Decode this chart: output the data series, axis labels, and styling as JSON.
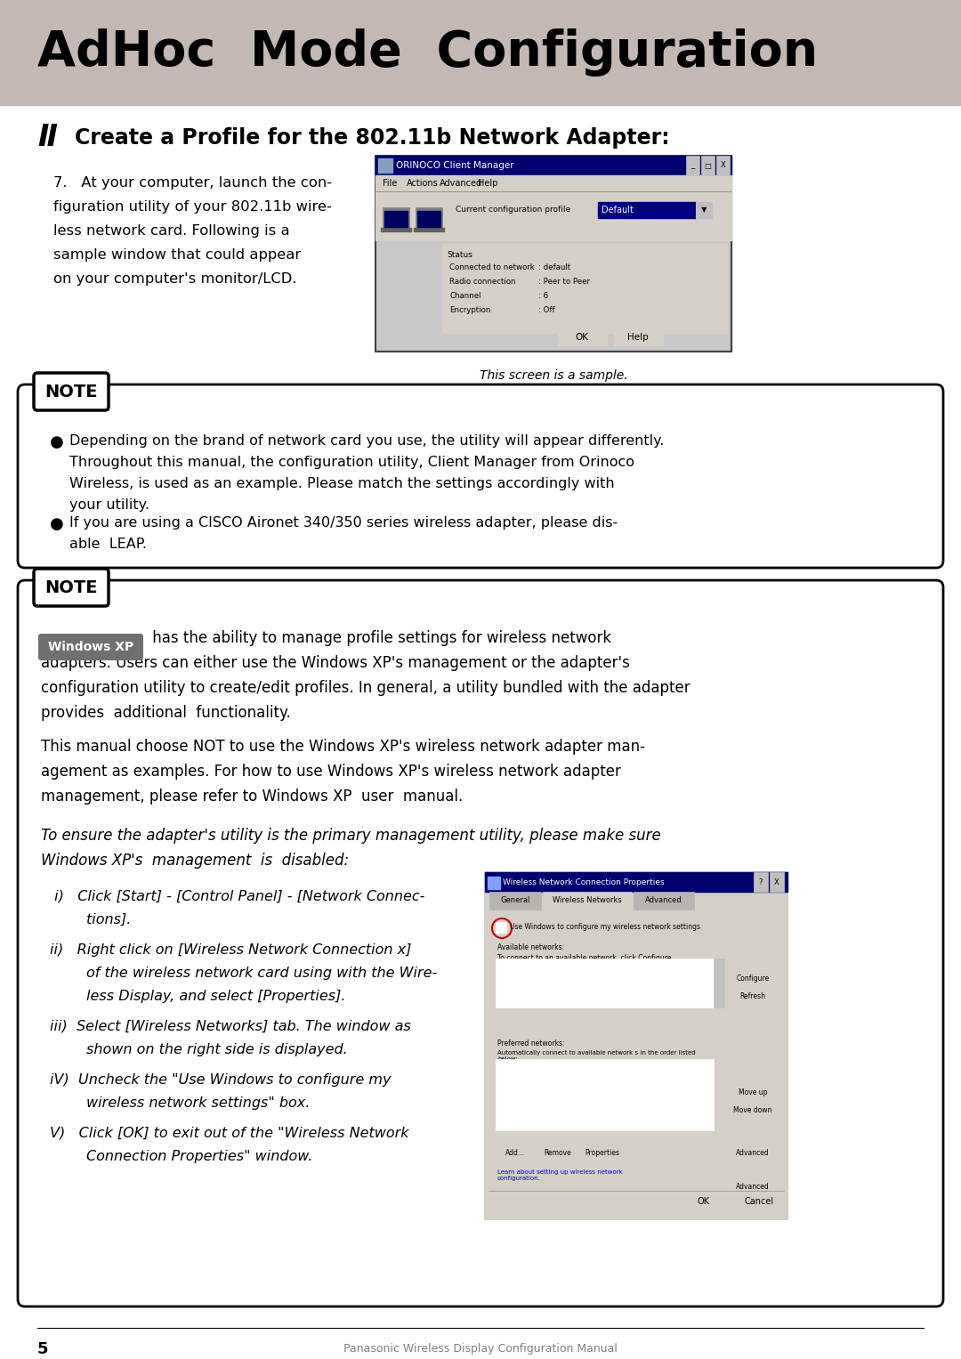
{
  "bg_color": "#ffffff",
  "header_bg": "#c4b8b5",
  "header_text": "AdHoc  Mode  Configuration",
  "header_text_color": "#000000",
  "section_title": "Create a Profile for the 802.11b Network Adapter:",
  "screen_caption": "This screen is a sample.",
  "note1_bullet1_line1": "Depending on the brand of network card you use, the utility will appear differently.",
  "note1_bullet1_line2": "Throughout this manual, the configuration utility, Client Manager from Orinoco",
  "note1_bullet1_line3": "Wireless, is used as an example. Please match the settings accordingly with",
  "note1_bullet1_line4": "your utility.",
  "note1_bullet2_line1": "If you are using a CISCO Aironet 340/350 series wireless adapter, please dis-",
  "note1_bullet2_line2": "able  LEAP.",
  "xp_para1_lines": [
    " has the ability to manage profile settings for wireless network",
    "adapters. Users can either use the Windows XP's management or the adapter's",
    "configuration utility to create/edit profiles. In general, a utility bundled with the adapter",
    "provides  additional  functionality."
  ],
  "para2_lines": [
    "This manual choose NOT to use the Windows XP's wireless network adapter man-",
    "agement as examples. For how to use Windows XP's wireless network adapter",
    "management, please refer to Windows XP  user  manual."
  ],
  "italic_lines": [
    "To ensure the adapter's utility is the primary management utility, please make sure",
    "Windows XP's  management  is  disabled:"
  ],
  "step_i_lines": [
    "i)   Click [Start] - [Control Panel] - [Network Connec-",
    "        tions]."
  ],
  "step_ii_lines": [
    "ii)   Right click on [Wireless Network Connection x]",
    "        of the wireless network card using with the Wire-",
    "        less Display, and select [Properties]."
  ],
  "step_iii_lines": [
    "iii)  Select [Wireless Networks] tab. The window as",
    "        shown on the right side is displayed."
  ],
  "step_iv_lines": [
    "iV)  Uncheck the \"Use Windows to configure my",
    "        wireless network settings\" box."
  ],
  "step_v_lines": [
    "V)   Click [OK] to exit out of the \"Wireless Network",
    "        Connection Properties\" window."
  ],
  "footer_page": "5",
  "footer_text": "Panasonic Wireless Display Configuration Manual"
}
